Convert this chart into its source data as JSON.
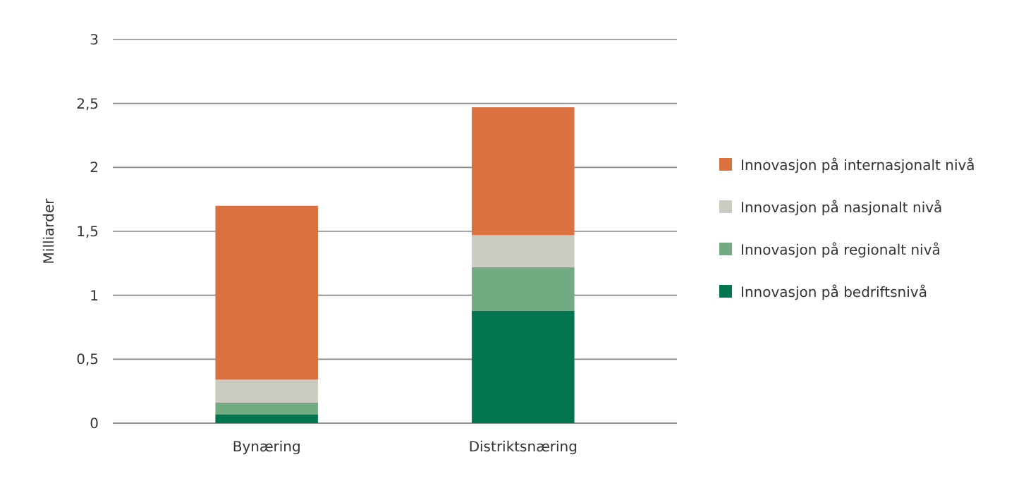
{
  "chart_data": {
    "type": "bar",
    "stacked": true,
    "ylabel": "Milliarder",
    "categories": [
      "Bynæring",
      "Distriktsnæring"
    ],
    "series": [
      {
        "name": "Innovasjon på bedriftsnivå",
        "color": "#00754f",
        "values": [
          0.07,
          0.88
        ]
      },
      {
        "name": "Innovasjon på regionalt nivå",
        "color": "#72ab82",
        "values": [
          0.09,
          0.34
        ]
      },
      {
        "name": "Innovasjon på nasjonalt nivå",
        "color": "#cccbc1",
        "values": [
          0.18,
          0.25
        ]
      },
      {
        "name": "Innovasjon på internasjonalt nivå",
        "color": "#dc7140",
        "values": [
          1.36,
          1.0
        ]
      }
    ],
    "ylim": [
      0,
      3
    ],
    "yticks": [
      0,
      {
        "value": 0.5,
        "label": "0,5"
      },
      1,
      {
        "value": 1.5,
        "label": "1,5"
      },
      2,
      {
        "value": 2.5,
        "label": "2,5"
      },
      3
    ],
    "grid": "y",
    "legend": "right"
  }
}
